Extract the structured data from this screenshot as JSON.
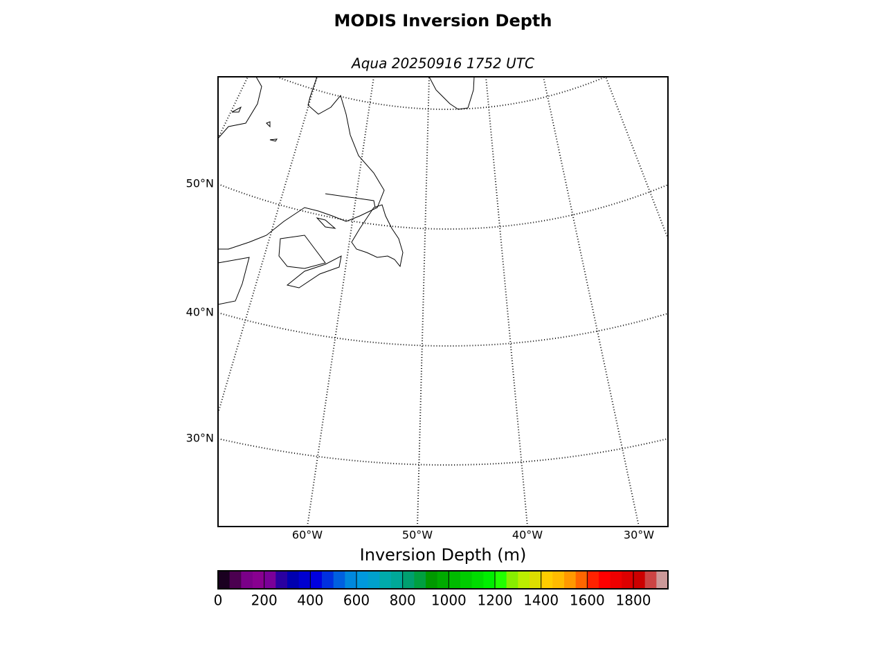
{
  "header": {
    "title": "MODIS Inversion Depth",
    "subtitle": "Aqua 20250916 1752 UTC"
  },
  "map": {
    "lat_labels": [
      "50°N",
      "40°N",
      "30°N"
    ],
    "lon_labels": [
      "60°W",
      "50°W",
      "40°W",
      "30°W"
    ]
  },
  "colorbar": {
    "label": "Inversion Depth (m)",
    "range": [
      0,
      1950
    ],
    "ticks": [
      0,
      200,
      400,
      600,
      800,
      1000,
      1200,
      1400,
      1600,
      1800
    ],
    "colors": [
      "#1a0020",
      "#4b0050",
      "#7a0088",
      "#880090",
      "#7a0099",
      "#2a00a0",
      "#0000b0",
      "#0000d0",
      "#0000e0",
      "#0030e0",
      "#0060e0",
      "#0088dd",
      "#0099dd",
      "#00a0cc",
      "#00aaaa",
      "#00a898",
      "#00a070",
      "#00a040",
      "#009900",
      "#00aa00",
      "#00bb00",
      "#00cc00",
      "#00dd00",
      "#00ee00",
      "#22ff00",
      "#88ee00",
      "#bbee00",
      "#dddd00",
      "#ffcc00",
      "#ffbb00",
      "#ff9900",
      "#ff6600",
      "#ff2200",
      "#ff0000",
      "#ee0000",
      "#dd0000",
      "#cc0000",
      "#cc4444",
      "#cc9999"
    ]
  }
}
